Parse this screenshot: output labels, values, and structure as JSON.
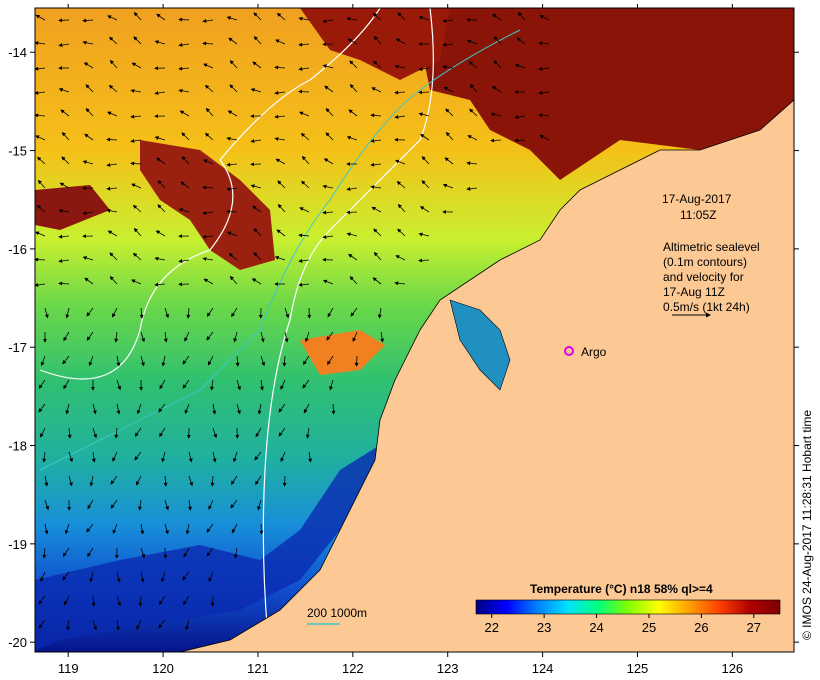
{
  "map": {
    "timestamp_date": "17-Aug-2017",
    "timestamp_time": "11:05Z",
    "legend_lines": [
      "Altimetric sealevel",
      "(0.1m contours)",
      "and velocity for",
      "17-Aug 11Z",
      "0.5m/s (1kt 24h)"
    ],
    "argo_label": "Argo",
    "depth_label": "200  1000m",
    "credit": "© IMOS 24-Aug-2017 11:28:31 Hobart time",
    "lon_ticks": [
      "119",
      "120",
      "121",
      "122",
      "123",
      "124",
      "125",
      "126"
    ],
    "lat_ticks": [
      "-14",
      "-15",
      "-16",
      "-17",
      "-18",
      "-19",
      "-20"
    ],
    "lon_range": [
      118.65,
      126.65
    ],
    "lat_range": [
      -20.1,
      -13.55
    ],
    "land_color": "#fcc894",
    "depth_contour_colors": [
      "#ffffff",
      "#3cc8c8"
    ],
    "argo_color": "#e400e4"
  },
  "colorbar": {
    "title": "Temperature (°C) n18 58% ql>=4",
    "ticks": [
      "22",
      "23",
      "24",
      "25",
      "26",
      "27"
    ],
    "range": [
      21.7,
      27.5
    ],
    "colors": [
      "#00007f",
      "#0000ff",
      "#007fff",
      "#00e0ff",
      "#00ff80",
      "#80ff00",
      "#ffff00",
      "#ffa000",
      "#ff4000",
      "#b00000",
      "#7f0000"
    ]
  }
}
